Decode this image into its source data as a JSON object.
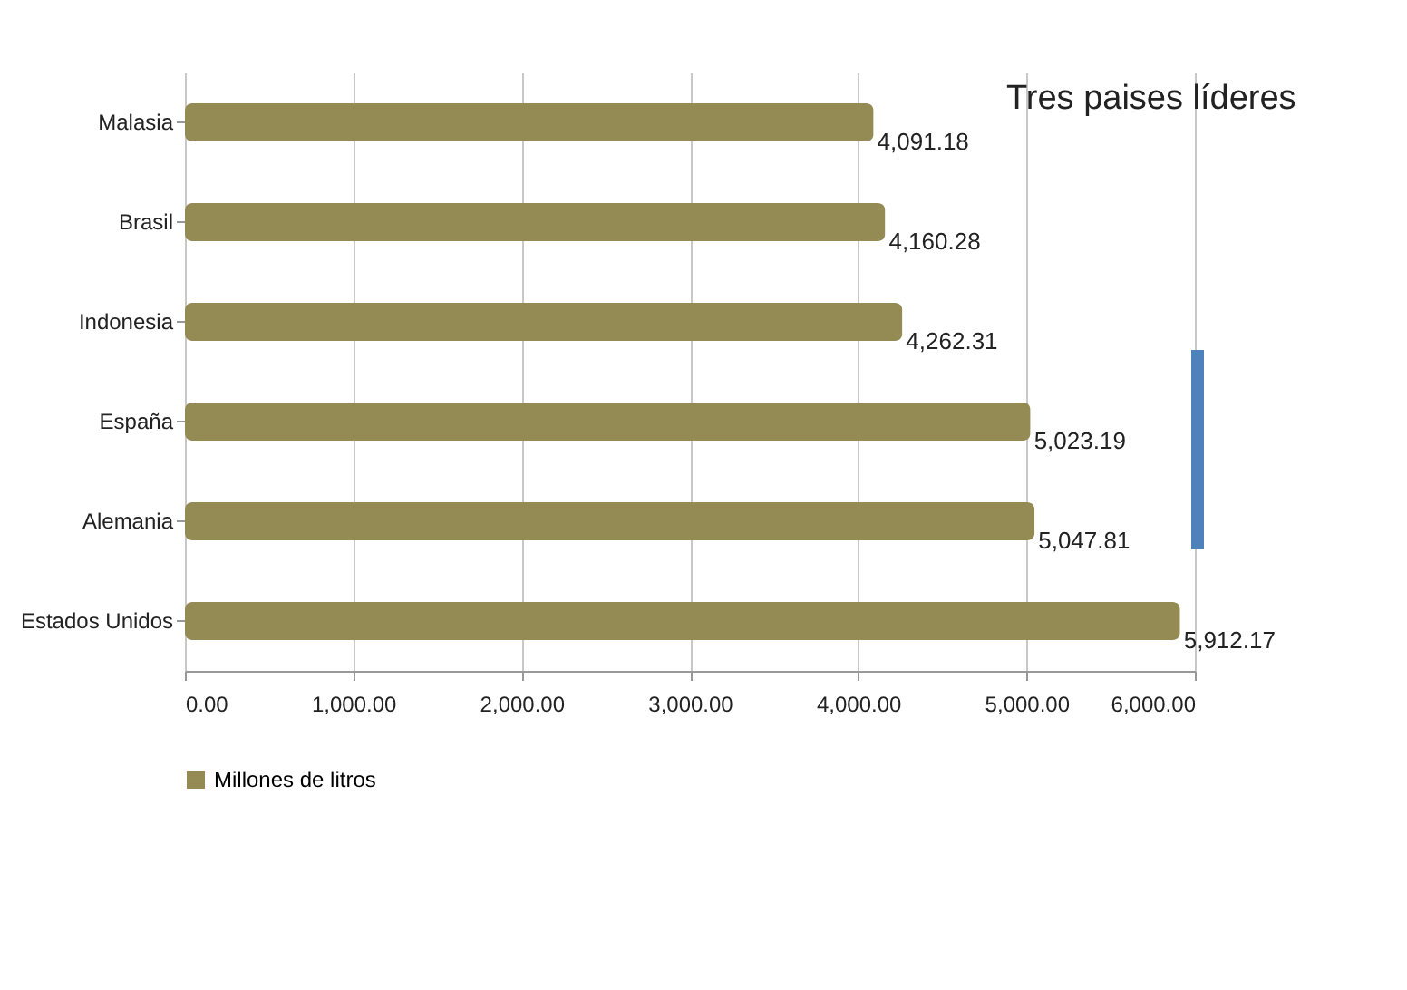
{
  "chart_data": {
    "type": "bar",
    "orientation": "horizontal",
    "categories": [
      "Malasia",
      "Brasil",
      "Indonesia",
      "España",
      "Alemania",
      "Estados Unidos"
    ],
    "series": [
      {
        "name": "Millones de litros",
        "color": "#948a54",
        "values": [
          4091.18,
          4160.28,
          4262.31,
          5023.19,
          5047.81,
          5912.17
        ],
        "value_labels": [
          "4,091.18",
          "4,160.28",
          "4,262.31",
          "5,023.19",
          "5,047.81",
          "5,912.17"
        ]
      }
    ],
    "xlim": [
      0,
      6000
    ],
    "xticks": [
      {
        "value": 0,
        "label": "0.00"
      },
      {
        "value": 1000,
        "label": "1,000.00"
      },
      {
        "value": 2000,
        "label": "2,000.00"
      },
      {
        "value": 3000,
        "label": "3,000.00"
      },
      {
        "value": 4000,
        "label": "4,000.00"
      },
      {
        "value": 5000,
        "label": "5,000.00"
      },
      {
        "value": 6000,
        "label": "6,000.00"
      }
    ],
    "grid": "x",
    "legend": "bottom",
    "annotations": [
      "Tres paises líderes"
    ]
  }
}
